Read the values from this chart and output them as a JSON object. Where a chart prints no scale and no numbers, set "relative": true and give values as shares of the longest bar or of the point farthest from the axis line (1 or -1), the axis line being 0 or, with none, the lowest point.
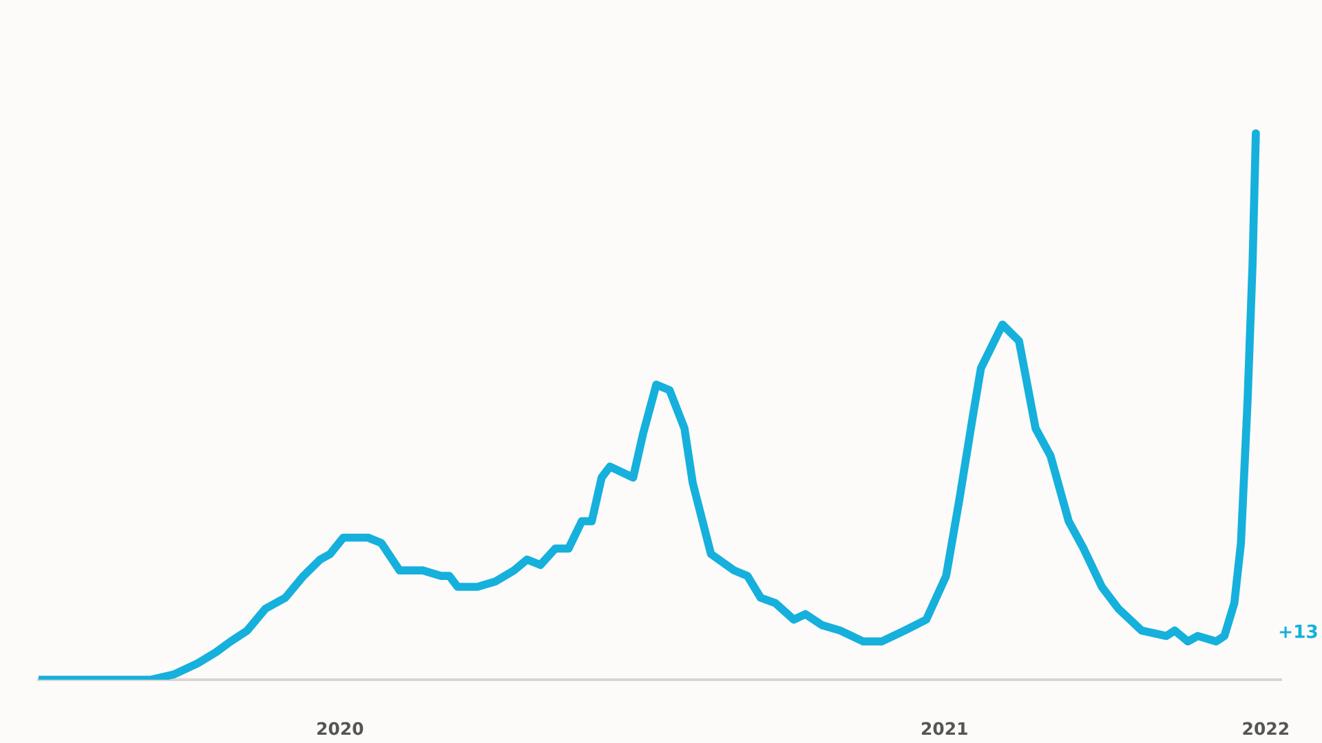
{
  "chart_data": {
    "type": "line",
    "relative": true,
    "x": [
      "2020-01-01",
      "2020-03-09",
      "2020-03-23",
      "2020-04-06",
      "2020-04-17",
      "2020-04-26",
      "2020-05-06",
      "2020-05-17",
      "2020-05-29",
      "2020-06-09",
      "2020-06-19",
      "2020-06-25",
      "2020-07-03",
      "2020-07-18",
      "2020-07-26",
      "2020-08-06",
      "2020-08-20",
      "2020-08-31",
      "2020-09-05",
      "2020-09-10",
      "2020-09-22",
      "2020-10-03",
      "2020-10-14",
      "2020-10-22",
      "2020-10-30",
      "2020-11-08",
      "2020-11-16",
      "2020-11-24",
      "2020-11-30",
      "2020-12-06",
      "2020-12-11",
      "2020-12-25",
      "2020-12-31",
      "2021-01-08",
      "2021-01-16",
      "2021-01-25",
      "2021-01-30",
      "2021-02-10",
      "2021-02-24",
      "2021-03-04",
      "2021-03-12",
      "2021-03-21",
      "2021-04-01",
      "2021-04-08",
      "2021-04-18",
      "2021-04-29",
      "2021-05-13",
      "2021-05-24",
      "2021-06-07",
      "2021-06-20",
      "2021-07-02",
      "2021-07-10",
      "2021-07-18",
      "2021-07-23",
      "2021-08-05",
      "2021-08-15",
      "2021-08-25",
      "2021-09-03",
      "2021-09-14",
      "2021-09-23",
      "2021-10-04",
      "2021-10-14",
      "2021-10-28",
      "2021-11-12",
      "2021-11-17",
      "2021-11-25",
      "2021-12-01",
      "2021-12-12",
      "2021-12-17",
      "2021-12-23",
      "2021-12-27",
      "2021-12-31",
      "2022-01-03",
      "2022-01-05"
    ],
    "series": [
      {
        "color": "#16b0dc",
        "values": [
          0,
          0,
          0.01,
          0.03,
          0.05,
          0.07,
          0.09,
          0.13,
          0.15,
          0.19,
          0.22,
          0.23,
          0.26,
          0.26,
          0.25,
          0.2,
          0.2,
          0.19,
          0.19,
          0.17,
          0.17,
          0.18,
          0.2,
          0.22,
          0.21,
          0.24,
          0.24,
          0.29,
          0.29,
          0.37,
          0.39,
          0.37,
          0.45,
          0.54,
          0.53,
          0.46,
          0.36,
          0.23,
          0.2,
          0.19,
          0.15,
          0.14,
          0.11,
          0.12,
          0.1,
          0.09,
          0.07,
          0.07,
          0.09,
          0.11,
          0.19,
          0.33,
          0.48,
          0.57,
          0.65,
          0.62,
          0.46,
          0.41,
          0.29,
          0.24,
          0.17,
          0.13,
          0.09,
          0.08,
          0.09,
          0.07,
          0.08,
          0.07,
          0.08,
          0.14,
          0.25,
          0.51,
          0.76,
          1.0
        ]
      }
    ],
    "xlim": [
      "2020-01-01",
      "2022-01-20"
    ],
    "xticks": [
      {
        "value": "2020-07-01",
        "label": "2020"
      },
      {
        "value": "2021-07-01",
        "label": "2021"
      },
      {
        "value": "2022-01-11",
        "label": "2022"
      }
    ],
    "annotations": [
      "+13"
    ]
  }
}
